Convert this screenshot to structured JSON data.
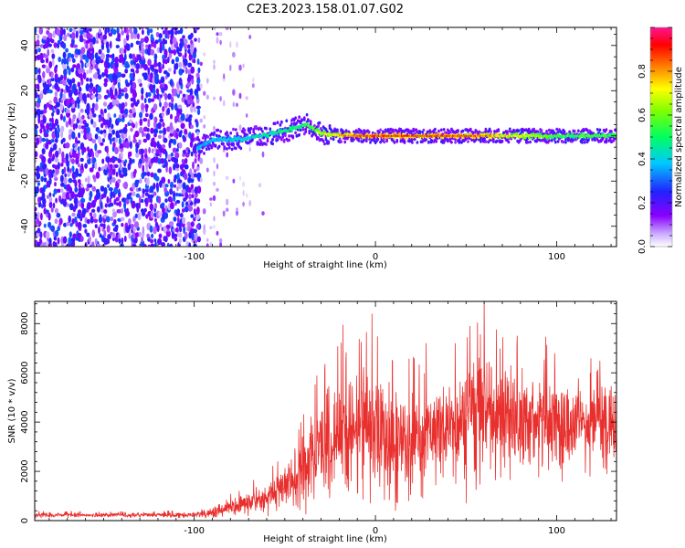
{
  "figure_title": "C2E3.2023.158.01.07.G02",
  "chart_data": [
    {
      "type": "heatmap",
      "title": "C2E3.2023.158.01.07.G02",
      "xlabel": "Height of straight line (km)",
      "ylabel": "Frequency (Hz)",
      "xlim": [
        -188,
        133
      ],
      "ylim": [
        -49,
        48
      ],
      "xticks": [
        "-100",
        "0",
        "100"
      ],
      "yticks": [
        "-40",
        "-20",
        "0",
        "20",
        "40"
      ],
      "grid": false,
      "colorbar": {
        "label": "Normalized spectral amplitude",
        "range": [
          0.0,
          1.0
        ],
        "ticks": [
          "0.0",
          "0.2",
          "0.4",
          "0.6",
          "0.8"
        ],
        "colormap": "rainbow",
        "colors": [
          "#ffffff",
          "#8b00ff",
          "#0000ff",
          "#00ffff",
          "#00ff00",
          "#ffff00",
          "#ff7f00",
          "#ff0000",
          "#ff1493"
        ]
      },
      "features": [
        {
          "name": "broadband noise",
          "x_range": [
            -188,
            -98
          ],
          "freq_range": [
            -49,
            48
          ],
          "amplitude": [
            0.05,
            0.3
          ]
        },
        {
          "name": "scattered noise",
          "x_range": [
            -98,
            -60
          ],
          "freq_range": [
            -49,
            48
          ],
          "amplitude": [
            0.02,
            0.12
          ]
        },
        {
          "name": "signal track",
          "points": [
            [
              -98,
              -5
            ],
            [
              -90,
              -2
            ],
            [
              -70,
              -1
            ],
            [
              -50,
              2
            ],
            [
              -38,
              5
            ],
            [
              -30,
              1
            ],
            [
              -15,
              0
            ],
            [
              0,
              0
            ],
            [
              133,
              0
            ]
          ],
          "amplitude_at_x": [
            [
              -98,
              0.4
            ],
            [
              -70,
              0.45
            ],
            [
              -40,
              0.55
            ],
            [
              -20,
              0.85
            ],
            [
              0,
              0.95
            ],
            [
              60,
              0.9
            ],
            [
              100,
              0.6
            ],
            [
              133,
              0.6
            ]
          ]
        }
      ]
    },
    {
      "type": "line",
      "xlabel": "Height of straight line (km)",
      "ylabel": "SNR (10 * v/v)",
      "xlim": [
        -188,
        133
      ],
      "ylim": [
        0,
        8900
      ],
      "xticks": [
        "-100",
        "0",
        "100"
      ],
      "yticks": [
        "0",
        "2000",
        "4000",
        "6000",
        "8000"
      ],
      "grid": false,
      "line_color": "#e8302e",
      "envelope": {
        "x": [
          -188,
          -150,
          -120,
          -100,
          -90,
          -80,
          -70,
          -60,
          -50,
          -40,
          -30,
          -20,
          -10,
          0,
          10,
          20,
          30,
          40,
          50,
          60,
          70,
          80,
          90,
          100,
          110,
          120,
          133
        ],
        "mean": [
          230,
          230,
          230,
          240,
          350,
          550,
          750,
          950,
          1350,
          2200,
          3000,
          3400,
          3800,
          3800,
          3300,
          3300,
          3500,
          4000,
          4200,
          4500,
          4300,
          4200,
          4100,
          4000,
          3900,
          3800,
          3900
        ],
        "spread": [
          80,
          80,
          80,
          90,
          200,
          300,
          400,
          500,
          700,
          1300,
          1600,
          1800,
          2000,
          2100,
          1700,
          1600,
          1700,
          1800,
          1900,
          2000,
          1900,
          1800,
          1700,
          1600,
          1500,
          1300,
          1200
        ]
      },
      "peaks": [
        [
          -18,
          7950
        ],
        [
          -2,
          8400
        ],
        [
          28,
          7200
        ],
        [
          60,
          8900
        ],
        [
          78,
          7100
        ]
      ],
      "dips": [
        [
          11,
          400
        ],
        [
          -10,
          1100
        ],
        [
          50,
          700
        ]
      ]
    }
  ]
}
